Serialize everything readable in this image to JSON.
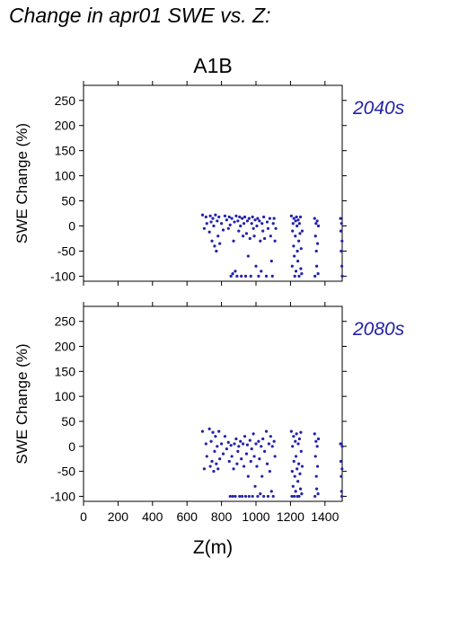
{
  "title": "Change in apr01 SWE vs. Z:",
  "chart_data": [
    {
      "type": "scatter",
      "title": "A1B",
      "period_label": "2040s",
      "ylabel": "SWE Change (%)",
      "xlabel": "",
      "xlim": [
        0,
        1500
      ],
      "ylim": [
        -110,
        280
      ],
      "xticks": [
        0,
        200,
        400,
        600,
        800,
        1000,
        1200,
        1400
      ],
      "yticks": [
        -100,
        -50,
        0,
        50,
        100,
        150,
        200,
        250
      ],
      "x_tick_labels_shown": false,
      "color": "#2222aa",
      "points": [
        [
          690,
          22
        ],
        [
          700,
          -5
        ],
        [
          710,
          18
        ],
        [
          715,
          5
        ],
        [
          730,
          -12
        ],
        [
          735,
          20
        ],
        [
          740,
          8
        ],
        [
          745,
          -30
        ],
        [
          750,
          15
        ],
        [
          755,
          0
        ],
        [
          760,
          -40
        ],
        [
          765,
          22
        ],
        [
          770,
          -50
        ],
        [
          775,
          10
        ],
        [
          780,
          -20
        ],
        [
          785,
          18
        ],
        [
          790,
          -35
        ],
        [
          800,
          5
        ],
        [
          810,
          -8
        ],
        [
          820,
          20
        ],
        [
          830,
          12
        ],
        [
          840,
          -5
        ],
        [
          845,
          18
        ],
        [
          850,
          2
        ],
        [
          855,
          -100
        ],
        [
          860,
          15
        ],
        [
          865,
          -95
        ],
        [
          870,
          -30
        ],
        [
          875,
          8
        ],
        [
          880,
          -90
        ],
        [
          885,
          20
        ],
        [
          890,
          -100
        ],
        [
          895,
          10
        ],
        [
          900,
          -10
        ],
        [
          905,
          18
        ],
        [
          910,
          0
        ],
        [
          915,
          -100
        ],
        [
          920,
          15
        ],
        [
          925,
          -20
        ],
        [
          930,
          5
        ],
        [
          935,
          18
        ],
        [
          940,
          -100
        ],
        [
          945,
          -15
        ],
        [
          950,
          10
        ],
        [
          955,
          -60
        ],
        [
          960,
          15
        ],
        [
          965,
          -25
        ],
        [
          970,
          -100
        ],
        [
          975,
          5
        ],
        [
          980,
          18
        ],
        [
          985,
          -5
        ],
        [
          990,
          -20
        ],
        [
          995,
          12
        ],
        [
          1000,
          -80
        ],
        [
          1005,
          0
        ],
        [
          1010,
          15
        ],
        [
          1015,
          -100
        ],
        [
          1020,
          10
        ],
        [
          1025,
          -30
        ],
        [
          1030,
          -90
        ],
        [
          1035,
          5
        ],
        [
          1040,
          -10
        ],
        [
          1045,
          18
        ],
        [
          1050,
          -25
        ],
        [
          1060,
          -100
        ],
        [
          1065,
          8
        ],
        [
          1070,
          -5
        ],
        [
          1080,
          15
        ],
        [
          1085,
          -20
        ],
        [
          1090,
          -70
        ],
        [
          1095,
          -100
        ],
        [
          1100,
          5
        ],
        [
          1105,
          15
        ],
        [
          1110,
          -30
        ],
        [
          1115,
          -5
        ],
        [
          1205,
          20
        ],
        [
          1210,
          -80
        ],
        [
          1212,
          -10
        ],
        [
          1215,
          5
        ],
        [
          1218,
          -40
        ],
        [
          1220,
          15
        ],
        [
          1222,
          -60
        ],
        [
          1225,
          -100
        ],
        [
          1228,
          -20
        ],
        [
          1230,
          10
        ],
        [
          1232,
          -90
        ],
        [
          1235,
          18
        ],
        [
          1238,
          0
        ],
        [
          1240,
          -50
        ],
        [
          1243,
          -70
        ],
        [
          1245,
          12
        ],
        [
          1248,
          -30
        ],
        [
          1250,
          -100
        ],
        [
          1252,
          5
        ],
        [
          1255,
          -15
        ],
        [
          1258,
          18
        ],
        [
          1260,
          -85
        ],
        [
          1262,
          -45
        ],
        [
          1265,
          -95
        ],
        [
          1268,
          -10
        ],
        [
          1340,
          15
        ],
        [
          1342,
          -100
        ],
        [
          1345,
          -20
        ],
        [
          1348,
          5
        ],
        [
          1350,
          -50
        ],
        [
          1352,
          -80
        ],
        [
          1355,
          10
        ],
        [
          1357,
          -35
        ],
        [
          1360,
          -95
        ],
        [
          1362,
          0
        ],
        [
          1490,
          15
        ],
        [
          1492,
          -10
        ],
        [
          1494,
          -50
        ],
        [
          1496,
          5
        ],
        [
          1498,
          -80
        ],
        [
          1499,
          -30
        ],
        [
          1500,
          -100
        ]
      ]
    },
    {
      "type": "scatter",
      "title": "",
      "period_label": "2080s",
      "ylabel": "SWE Change (%)",
      "xlabel": "Z(m)",
      "xlim": [
        0,
        1500
      ],
      "ylim": [
        -110,
        280
      ],
      "xticks": [
        0,
        200,
        400,
        600,
        800,
        1000,
        1200,
        1400
      ],
      "yticks": [
        -100,
        -50,
        0,
        50,
        100,
        150,
        200,
        250
      ],
      "x_tick_labels_shown": true,
      "color": "#2222aa",
      "points": [
        [
          690,
          30
        ],
        [
          700,
          -45
        ],
        [
          710,
          5
        ],
        [
          715,
          -20
        ],
        [
          730,
          35
        ],
        [
          735,
          -40
        ],
        [
          740,
          10
        ],
        [
          745,
          -30
        ],
        [
          750,
          28
        ],
        [
          755,
          -50
        ],
        [
          760,
          -10
        ],
        [
          765,
          20
        ],
        [
          770,
          -35
        ],
        [
          775,
          0
        ],
        [
          780,
          -45
        ],
        [
          785,
          30
        ],
        [
          790,
          -25
        ],
        [
          800,
          5
        ],
        [
          810,
          -15
        ],
        [
          820,
          20
        ],
        [
          830,
          -5
        ],
        [
          840,
          8
        ],
        [
          845,
          -30
        ],
        [
          850,
          -100
        ],
        [
          855,
          2
        ],
        [
          860,
          -20
        ],
        [
          865,
          -100
        ],
        [
          870,
          -45
        ],
        [
          875,
          5
        ],
        [
          880,
          -100
        ],
        [
          885,
          15
        ],
        [
          890,
          -35
        ],
        [
          895,
          -10
        ],
        [
          900,
          0
        ],
        [
          905,
          -100
        ],
        [
          910,
          10
        ],
        [
          915,
          -25
        ],
        [
          920,
          -100
        ],
        [
          925,
          5
        ],
        [
          930,
          -40
        ],
        [
          935,
          20
        ],
        [
          940,
          -100
        ],
        [
          945,
          -15
        ],
        [
          950,
          3
        ],
        [
          955,
          -60
        ],
        [
          960,
          -100
        ],
        [
          965,
          12
        ],
        [
          970,
          -30
        ],
        [
          975,
          -5
        ],
        [
          980,
          -100
        ],
        [
          985,
          25
        ],
        [
          990,
          -20
        ],
        [
          995,
          -80
        ],
        [
          1000,
          5
        ],
        [
          1005,
          -40
        ],
        [
          1010,
          -100
        ],
        [
          1015,
          10
        ],
        [
          1020,
          -25
        ],
        [
          1025,
          -95
        ],
        [
          1030,
          0
        ],
        [
          1035,
          -60
        ],
        [
          1040,
          15
        ],
        [
          1045,
          -100
        ],
        [
          1050,
          -10
        ],
        [
          1060,
          30
        ],
        [
          1065,
          -35
        ],
        [
          1070,
          -100
        ],
        [
          1075,
          5
        ],
        [
          1080,
          -50
        ],
        [
          1085,
          20
        ],
        [
          1090,
          -90
        ],
        [
          1095,
          0
        ],
        [
          1100,
          -100
        ],
        [
          1105,
          10
        ],
        [
          1110,
          -20
        ],
        [
          1205,
          30
        ],
        [
          1208,
          -100
        ],
        [
          1210,
          -50
        ],
        [
          1212,
          0
        ],
        [
          1215,
          -80
        ],
        [
          1218,
          20
        ],
        [
          1220,
          -30
        ],
        [
          1222,
          -100
        ],
        [
          1225,
          -60
        ],
        [
          1228,
          10
        ],
        [
          1230,
          -90
        ],
        [
          1232,
          -20
        ],
        [
          1235,
          25
        ],
        [
          1238,
          -45
        ],
        [
          1240,
          -100
        ],
        [
          1243,
          -70
        ],
        [
          1245,
          5
        ],
        [
          1248,
          -35
        ],
        [
          1250,
          -100
        ],
        [
          1252,
          15
        ],
        [
          1255,
          -55
        ],
        [
          1258,
          -85
        ],
        [
          1260,
          28
        ],
        [
          1262,
          -10
        ],
        [
          1265,
          -95
        ],
        [
          1268,
          -40
        ],
        [
          1340,
          25
        ],
        [
          1342,
          -100
        ],
        [
          1345,
          -20
        ],
        [
          1348,
          10
        ],
        [
          1350,
          -60
        ],
        [
          1352,
          -85
        ],
        [
          1355,
          0
        ],
        [
          1357,
          -40
        ],
        [
          1360,
          -95
        ],
        [
          1362,
          15
        ],
        [
          1490,
          5
        ],
        [
          1492,
          -30
        ],
        [
          1494,
          -60
        ],
        [
          1496,
          -90
        ],
        [
          1498,
          -100
        ],
        [
          1499,
          -45
        ],
        [
          1500,
          0
        ]
      ]
    }
  ]
}
